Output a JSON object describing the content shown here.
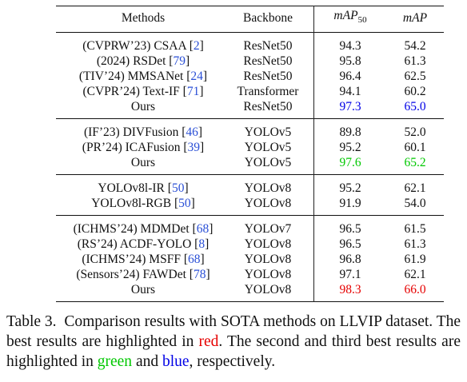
{
  "table": {
    "headers": {
      "methods": "Methods",
      "backbone": "Backbone",
      "map50_main": "mAP",
      "map50_sub": "50",
      "map": "mAP"
    },
    "groups": [
      [
        {
          "prefix": "(CVPRW’23) CSAA [",
          "ref": "2",
          "suffix": "]",
          "backbone": "ResNet50",
          "map50": "94.3",
          "map": "54.2",
          "map50_color": "",
          "map_color": ""
        },
        {
          "prefix": "(2024) RSDet [",
          "ref": "79",
          "suffix": "]",
          "backbone": "ResNet50",
          "map50": "95.8",
          "map": "61.3",
          "map50_color": "",
          "map_color": ""
        },
        {
          "prefix": "(TIV’24) MMSANet [",
          "ref": "24",
          "suffix": "]",
          "backbone": "ResNet50",
          "map50": "96.4",
          "map": "62.5",
          "map50_color": "",
          "map_color": ""
        },
        {
          "prefix": "(CVPR’24) Text-IF [",
          "ref": "71",
          "suffix": "]",
          "backbone": "Transformer",
          "map50": "94.1",
          "map": "60.2",
          "map50_color": "",
          "map_color": ""
        },
        {
          "prefix": "Ours",
          "ref": "",
          "suffix": "",
          "backbone": "ResNet50",
          "map50": "97.3",
          "map": "65.0",
          "map50_color": "blue",
          "map_color": "blue"
        }
      ],
      [
        {
          "prefix": "(IF’23) DIVFusion [",
          "ref": "46",
          "suffix": "]",
          "backbone": "YOLOv5",
          "map50": "89.8",
          "map": "52.0",
          "map50_color": "",
          "map_color": ""
        },
        {
          "prefix": "(PR’24) ICAFusion [",
          "ref": "39",
          "suffix": "]",
          "backbone": "YOLOv5",
          "map50": "95.2",
          "map": "60.1",
          "map50_color": "",
          "map_color": ""
        },
        {
          "prefix": "Ours",
          "ref": "",
          "suffix": "",
          "backbone": "YOLOv5",
          "map50": "97.6",
          "map": "65.2",
          "map50_color": "green",
          "map_color": "green"
        }
      ],
      [
        {
          "prefix": "YOLOv8l-IR [",
          "ref": "50",
          "suffix": "]",
          "backbone": "YOLOv8",
          "map50": "95.2",
          "map": "62.1",
          "map50_color": "",
          "map_color": ""
        },
        {
          "prefix": "YOLOv8l-RGB [",
          "ref": "50",
          "suffix": "]",
          "backbone": "YOLOv8",
          "map50": "91.9",
          "map": "54.0",
          "map50_color": "",
          "map_color": ""
        }
      ],
      [
        {
          "prefix": "(ICHMS’24) MDMDet [",
          "ref": "68",
          "suffix": "]",
          "backbone": "YOLOv7",
          "map50": "96.5",
          "map": "61.5",
          "map50_color": "",
          "map_color": ""
        },
        {
          "prefix": "(RS’24) ACDF-YOLO [",
          "ref": "8",
          "suffix": "]",
          "backbone": "YOLOv8",
          "map50": "96.5",
          "map": "61.3",
          "map50_color": "",
          "map_color": ""
        },
        {
          "prefix": "(ICHMS’24) MSFF [",
          "ref": "68",
          "suffix": "]",
          "backbone": "YOLOv8",
          "map50": "96.8",
          "map": "61.9",
          "map50_color": "",
          "map_color": ""
        },
        {
          "prefix": "(Sensors’24) FAWDet [",
          "ref": "78",
          "suffix": "]",
          "backbone": "YOLOv8",
          "map50": "97.1",
          "map": "62.1",
          "map50_color": "",
          "map_color": ""
        },
        {
          "prefix": "Ours",
          "ref": "",
          "suffix": "",
          "backbone": "YOLOv8",
          "map50": "98.3",
          "map": "66.0",
          "map50_color": "red",
          "map_color": "red"
        }
      ]
    ]
  },
  "caption": {
    "label": "Table 3.",
    "text1": "Comparison results with SOTA methods on LLVIP dataset. The best results are highlighted in ",
    "red_word": "red",
    "text2": ". The second and third best results are highlighted in ",
    "green_word": "green",
    "text3": " and ",
    "blue_word": "blue",
    "text4": ", respectively."
  },
  "colors": {
    "red": "#e60000",
    "green": "#00c800",
    "blue": "#0000e6",
    "citation": "#2a4fd6"
  }
}
